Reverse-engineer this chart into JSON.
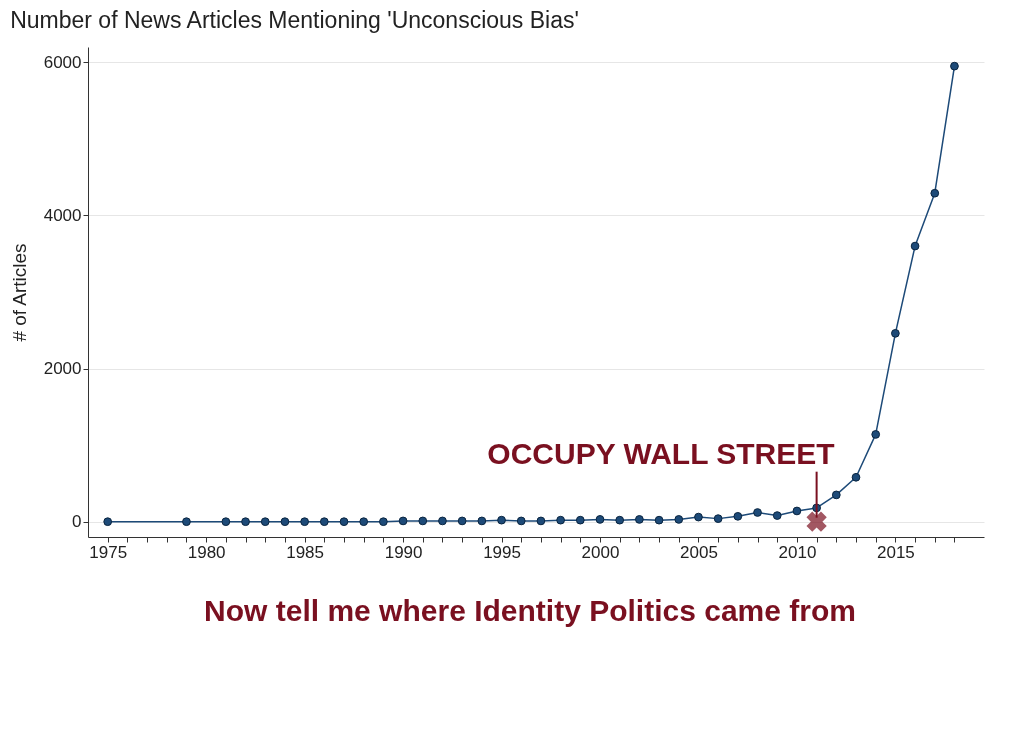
{
  "chart_data": {
    "type": "line",
    "title": "Number of News Articles Mentioning 'Unconscious Bias'",
    "ylabel": "# of Articles",
    "x": [
      1975,
      1979,
      1981,
      1982,
      1983,
      1984,
      1985,
      1986,
      1987,
      1988,
      1989,
      1990,
      1991,
      1992,
      1993,
      1994,
      1995,
      1996,
      1997,
      1998,
      1999,
      2000,
      2001,
      2002,
      2003,
      2004,
      2005,
      2006,
      2007,
      2008,
      2009,
      2010,
      2011,
      2012,
      2013,
      2014,
      2015,
      2016,
      2017,
      2018
    ],
    "series": [
      {
        "color": "#1d4a78",
        "values": [
          0,
          0,
          0,
          0,
          0,
          0,
          0,
          0,
          0,
          0,
          0,
          10,
          10,
          10,
          10,
          10,
          20,
          10,
          10,
          20,
          20,
          30,
          20,
          30,
          20,
          30,
          60,
          40,
          70,
          120,
          80,
          140,
          180,
          350,
          580,
          1140,
          2460,
          3600,
          4290,
          5950
        ]
      }
    ],
    "xlim": [
      1974,
      2019.5
    ],
    "ylim": [
      -200,
      6200
    ],
    "xticks": [
      1975,
      {
        "value": 1976,
        "label": null
      },
      {
        "value": 1977,
        "label": null
      },
      {
        "value": 1978,
        "label": null
      },
      {
        "value": 1979,
        "label": null
      },
      1980,
      {
        "value": 1981,
        "label": null
      },
      {
        "value": 1982,
        "label": null
      },
      {
        "value": 1983,
        "label": null
      },
      {
        "value": 1984,
        "label": null
      },
      1985,
      {
        "value": 1986,
        "label": null
      },
      {
        "value": 1987,
        "label": null
      },
      {
        "value": 1988,
        "label": null
      },
      {
        "value": 1989,
        "label": null
      },
      1990,
      {
        "value": 1991,
        "label": null
      },
      {
        "value": 1992,
        "label": null
      },
      {
        "value": 1993,
        "label": null
      },
      {
        "value": 1994,
        "label": null
      },
      1995,
      {
        "value": 1996,
        "label": null
      },
      {
        "value": 1997,
        "label": null
      },
      {
        "value": 1998,
        "label": null
      },
      {
        "value": 1999,
        "label": null
      },
      2000,
      {
        "value": 2001,
        "label": null
      },
      {
        "value": 2002,
        "label": null
      },
      {
        "value": 2003,
        "label": null
      },
      {
        "value": 2004,
        "label": null
      },
      2005,
      {
        "value": 2006,
        "label": null
      },
      {
        "value": 2007,
        "label": null
      },
      {
        "value": 2008,
        "label": null
      },
      {
        "value": 2009,
        "label": null
      },
      2010,
      {
        "value": 2011,
        "label": null
      },
      {
        "value": 2012,
        "label": null
      },
      {
        "value": 2013,
        "label": null
      },
      {
        "value": 2014,
        "label": null
      },
      2015,
      {
        "value": 2016,
        "label": null
      },
      {
        "value": 2017,
        "label": null
      },
      {
        "value": 2018,
        "label": null
      }
    ],
    "yticks": [
      0,
      2000,
      4000,
      6000
    ],
    "grid": "y",
    "marker": "circle",
    "line_style": "solid",
    "annotations": [
      {
        "text": "OCCUPY WALL STREET",
        "x": 2011,
        "y": 0
      },
      "Now tell me where Identity Politics came from"
    ]
  }
}
